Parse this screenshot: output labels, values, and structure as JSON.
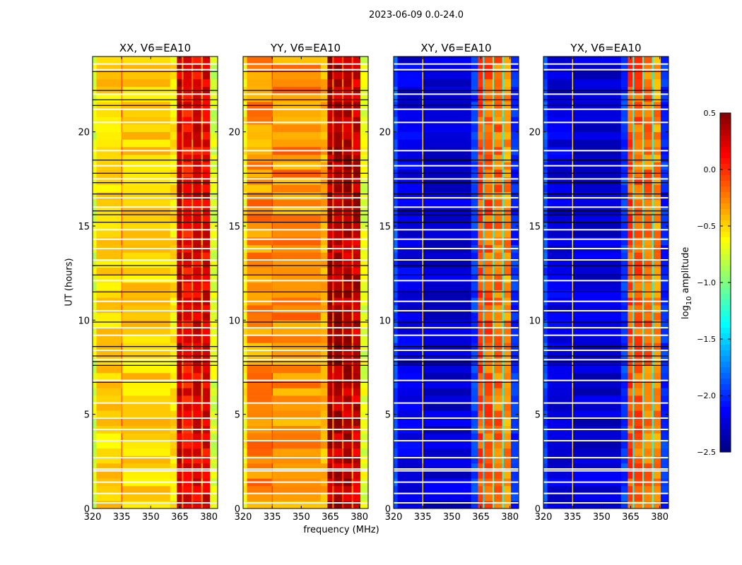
{
  "figure_title": "2023-06-09 0.0-24.0",
  "chart_data": {
    "type": "heatmap",
    "title": "2023-06-09 0.0-24.0",
    "xlabel": "frequency (MHz)",
    "ylabel": "UT (hours)",
    "xlim": [
      320,
      384.5
    ],
    "ylim": [
      0,
      24
    ],
    "xticks": [
      "320",
      "335",
      "350",
      "365",
      "380"
    ],
    "yticks": [
      "0",
      "5",
      "10",
      "15",
      "20"
    ],
    "colorbar": {
      "label": "log10 amplitude",
      "label_main": "log",
      "label_sub": "10",
      "label_rest": " amplitude",
      "range": [
        -2.5,
        0.5
      ],
      "ticks": [
        "0.5",
        "0.0",
        "−0.5",
        "−1.0",
        "−1.5",
        "−2.0",
        "−2.5"
      ],
      "tick_values": [
        0.5,
        0.0,
        -0.5,
        -1.0,
        -1.5,
        -2.0,
        -2.5
      ],
      "colormap": "jet"
    },
    "flagged_white_hours": [
      0.3,
      0.8,
      1.4,
      2.0,
      2.1,
      2.7,
      3.6,
      4.2,
      4.8,
      5.6,
      6.8,
      7.9,
      8.4,
      9.2,
      9.6,
      10.5,
      11.0,
      12.1,
      13.2,
      13.8,
      14.3,
      14.8,
      16.0,
      16.5,
      17.5,
      18.2,
      19.0,
      20.5,
      21.2,
      22.0,
      23.3,
      23.6
    ],
    "flagged_black_hours": [
      6.7,
      7.6,
      7.8,
      8.1,
      8.6,
      9.9,
      11.5,
      12.4,
      12.9,
      15.2,
      15.6,
      15.8,
      16.7,
      17.3,
      17.8,
      18.5,
      21.4,
      21.7,
      22.2,
      23.2
    ],
    "panels": [
      {
        "title": "XX, V6=EA10",
        "bands": [
          {
            "f": [
              320,
              322
            ],
            "v": -0.75
          },
          {
            "f": [
              322,
              334.8
            ],
            "v": -0.5
          },
          {
            "f": [
              334.8,
              335.3
            ],
            "v": -0.2
          },
          {
            "f": [
              335.3,
              360
            ],
            "v": -0.5
          },
          {
            "f": [
              360,
              363.5
            ],
            "v": -0.55
          },
          {
            "f": [
              363.5,
              366
            ],
            "v": 0.3
          },
          {
            "f": [
              366,
              366.8
            ],
            "v": -0.2
          },
          {
            "f": [
              366.8,
              371
            ],
            "v": 0.15
          },
          {
            "f": [
              371,
              371.8
            ],
            "v": -0.2
          },
          {
            "f": [
              371.8,
              376
            ],
            "v": 0.2
          },
          {
            "f": [
              376,
              376.8
            ],
            "v": -0.3
          },
          {
            "f": [
              376.8,
              380.5
            ],
            "v": 0.2
          },
          {
            "f": [
              380.5,
              384.5
            ],
            "v": -0.75
          }
        ]
      },
      {
        "title": "YY, V6=EA10",
        "bands": [
          {
            "f": [
              320,
              322
            ],
            "v": -0.6
          },
          {
            "f": [
              322,
              334.8
            ],
            "v": -0.3
          },
          {
            "f": [
              334.8,
              335.3
            ],
            "v": -0.1
          },
          {
            "f": [
              335.3,
              360
            ],
            "v": -0.3
          },
          {
            "f": [
              360,
              363.5
            ],
            "v": -0.4
          },
          {
            "f": [
              363.5,
              366
            ],
            "v": 0.4
          },
          {
            "f": [
              366,
              366.8
            ],
            "v": -0.1
          },
          {
            "f": [
              366.8,
              371
            ],
            "v": 0.35
          },
          {
            "f": [
              371,
              371.8
            ],
            "v": -0.1
          },
          {
            "f": [
              371.8,
              376
            ],
            "v": 0.35
          },
          {
            "f": [
              376,
              376.8
            ],
            "v": -0.2
          },
          {
            "f": [
              376.8,
              380.5
            ],
            "v": 0.3
          },
          {
            "f": [
              380.5,
              384.5
            ],
            "v": -0.7
          }
        ]
      },
      {
        "title": "XY, V6=EA10",
        "bands": [
          {
            "f": [
              320,
              322
            ],
            "v": -1.9
          },
          {
            "f": [
              322,
              334.8
            ],
            "v": -2.2
          },
          {
            "f": [
              334.8,
              335.3
            ],
            "v": -0.5
          },
          {
            "f": [
              335.3,
              360
            ],
            "v": -2.25
          },
          {
            "f": [
              360,
              363.5
            ],
            "v": -1.95
          },
          {
            "f": [
              363.5,
              366
            ],
            "v": -0.1
          },
          {
            "f": [
              366,
              366.8
            ],
            "v": -1.4
          },
          {
            "f": [
              366.8,
              371
            ],
            "v": -0.15
          },
          {
            "f": [
              371,
              371.8
            ],
            "v": -1.2
          },
          {
            "f": [
              371.8,
              376
            ],
            "v": -0.2
          },
          {
            "f": [
              376,
              376.8
            ],
            "v": -1.3
          },
          {
            "f": [
              376.8,
              380.5
            ],
            "v": -0.3
          },
          {
            "f": [
              380.5,
              384.5
            ],
            "v": -2.0
          }
        ]
      },
      {
        "title": "YX, V6=EA10",
        "bands": [
          {
            "f": [
              320,
              322
            ],
            "v": -1.9
          },
          {
            "f": [
              322,
              334.8
            ],
            "v": -2.2
          },
          {
            "f": [
              334.8,
              335.3
            ],
            "v": -0.5
          },
          {
            "f": [
              335.3,
              360
            ],
            "v": -2.25
          },
          {
            "f": [
              360,
              363.5
            ],
            "v": -1.95
          },
          {
            "f": [
              363.5,
              366
            ],
            "v": -0.1
          },
          {
            "f": [
              366,
              366.8
            ],
            "v": -1.3
          },
          {
            "f": [
              366.8,
              371
            ],
            "v": -0.15
          },
          {
            "f": [
              371,
              371.8
            ],
            "v": -1.2
          },
          {
            "f": [
              371.8,
              376
            ],
            "v": -0.2
          },
          {
            "f": [
              376,
              376.8
            ],
            "v": -1.3
          },
          {
            "f": [
              376.8,
              380.5
            ],
            "v": -0.3
          },
          {
            "f": [
              380.5,
              384.5
            ],
            "v": -2.0
          }
        ]
      }
    ]
  }
}
